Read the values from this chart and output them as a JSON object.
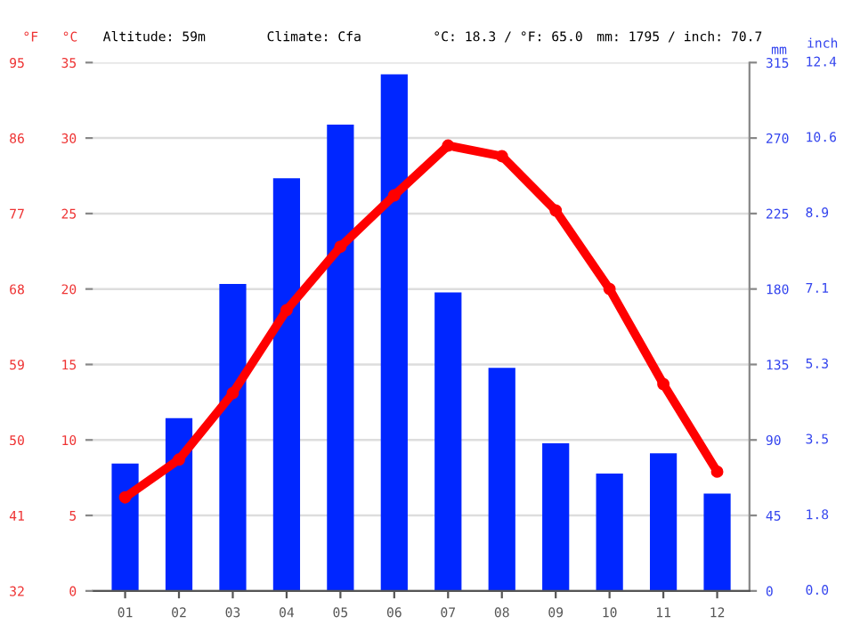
{
  "chart_data": {
    "type": "bar",
    "categories": [
      "01",
      "02",
      "03",
      "04",
      "05",
      "06",
      "07",
      "08",
      "09",
      "10",
      "11",
      "12"
    ],
    "series": [
      {
        "axis": "y2",
        "color": "#0026ff",
        "values": [
          76,
          103,
          183,
          246,
          278,
          308,
          178,
          133,
          88,
          70,
          82,
          58
        ]
      },
      {
        "type": "line",
        "axis": "y",
        "color": "#ff0000",
        "marker": "circle",
        "values": [
          6.2,
          8.7,
          13.1,
          18.6,
          22.8,
          26.2,
          29.5,
          28.8,
          25.2,
          20.0,
          13.7,
          7.9
        ]
      }
    ],
    "ylabel": "°C",
    "y2label": "mm",
    "y3label": "°F",
    "ylim": [
      0,
      35
    ],
    "yticks": [
      0,
      5,
      10,
      15,
      20,
      25,
      30,
      35
    ],
    "y2lim": [
      0,
      315
    ],
    "y2ticks": [
      0,
      45,
      90,
      135,
      180,
      225,
      270,
      315
    ],
    "y3lim": [
      32,
      95
    ],
    "y3ticks": [
      32,
      41,
      50,
      59,
      68,
      77,
      86,
      95
    ],
    "annotations": [
      "Altitude: 59m",
      "Climate: Cfa",
      "°C: 18.3 / °F: 65.0",
      "mm: 1795 / inch: 70.7",
      "inch",
      "0.0",
      "1.8",
      "3.5",
      "5.3",
      "7.1",
      "8.9",
      "10.6",
      "12.4"
    ],
    "grid": "y",
    "legend": false
  }
}
